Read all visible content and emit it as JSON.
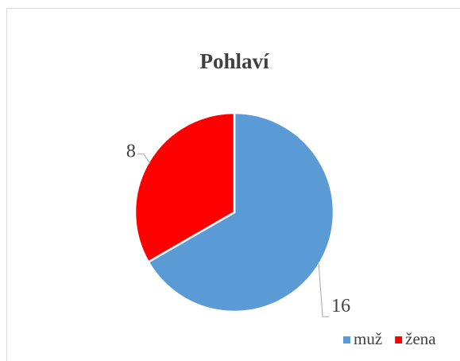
{
  "chart_data": {
    "type": "pie",
    "title": "Pohlaví",
    "categories": [
      "muž",
      "žena"
    ],
    "values": [
      16,
      8
    ],
    "colors": [
      "#5b9bd5",
      "#ff0000"
    ],
    "legend": "bottom-right"
  }
}
